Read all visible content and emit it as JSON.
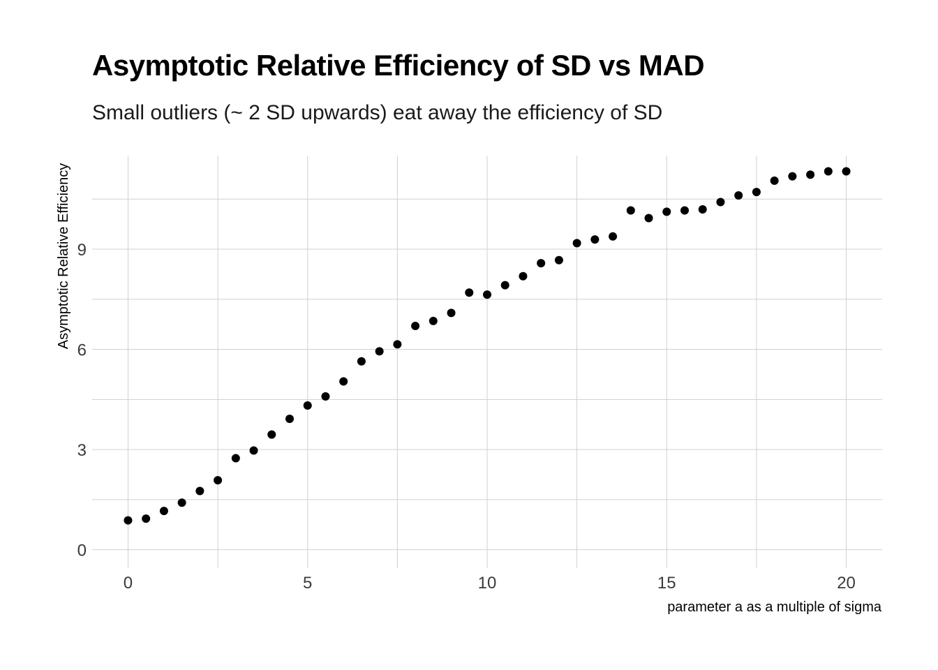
{
  "chart_data": {
    "type": "scatter",
    "title": "Asymptotic Relative Efficiency of SD vs MAD",
    "subtitle": "Small outliers (~ 2 SD upwards) eat away the efficiency of SD",
    "xlabel": "parameter a as a multiple of sigma",
    "ylabel": "Asymptotic Relative Efficiency",
    "xlim": [
      -1,
      21
    ],
    "ylim": [
      -0.55,
      11.8
    ],
    "x_ticks": [
      0,
      5,
      10,
      15,
      20
    ],
    "x_tick_labels": [
      "0",
      "5",
      "10",
      "15",
      "20"
    ],
    "x_minor_ticks": [
      2.5,
      7.5,
      12.5,
      17.5
    ],
    "y_ticks": [
      0,
      3,
      6,
      9
    ],
    "y_tick_labels": [
      "0",
      "3",
      "6",
      "9"
    ],
    "y_minor_ticks": [
      1.5,
      4.5,
      7.5,
      10.5
    ],
    "grid": true,
    "legend": "none",
    "point_color": "#000000",
    "grid_color": "#d0d0d0",
    "x": [
      0,
      0.5,
      1,
      1.5,
      2,
      2.5,
      3,
      3.5,
      4,
      4.5,
      5,
      5.5,
      6,
      6.5,
      7,
      7.5,
      8,
      8.5,
      9,
      9.5,
      10,
      10.5,
      11,
      11.5,
      12,
      12.5,
      13,
      13.5,
      14,
      14.5,
      15,
      15.5,
      16,
      16.5,
      17,
      17.5,
      18,
      18.5,
      19,
      19.5,
      20
    ],
    "y": [
      0.88,
      0.93,
      1.16,
      1.41,
      1.76,
      2.08,
      2.74,
      2.97,
      3.45,
      3.92,
      4.32,
      4.59,
      5.04,
      5.64,
      5.94,
      6.15,
      6.7,
      6.85,
      7.09,
      7.7,
      7.64,
      7.92,
      8.19,
      8.58,
      8.67,
      9.18,
      9.29,
      9.38,
      10.16,
      9.93,
      10.12,
      10.16,
      10.19,
      10.41,
      10.61,
      10.71,
      11.05,
      11.18,
      11.23,
      11.33,
      11.33
    ]
  }
}
